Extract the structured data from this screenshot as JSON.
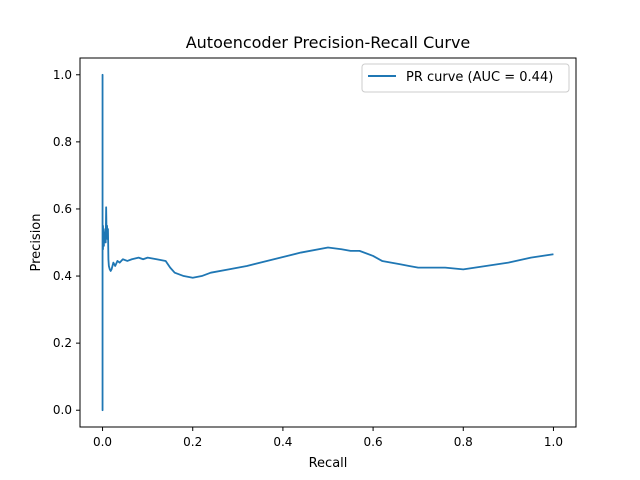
{
  "chart_data": {
    "type": "line",
    "title": "Autoencoder Precision-Recall Curve",
    "xlabel": "Recall",
    "ylabel": "Precision",
    "xlim": [
      -0.05,
      1.05
    ],
    "ylim": [
      -0.05,
      1.05
    ],
    "xticks": [
      "0.0",
      "0.2",
      "0.4",
      "0.6",
      "0.8",
      "1.0"
    ],
    "yticks": [
      "0.0",
      "0.2",
      "0.4",
      "0.6",
      "0.8",
      "1.0"
    ],
    "grid": false,
    "legend_position": "top-right",
    "colors": {
      "series": "#1f77b4",
      "axes": "#000000",
      "legend_border": "#cccccc"
    },
    "series": [
      {
        "name": "PR curve (AUC = 0.44)",
        "x": [
          0.0,
          0.0,
          0.0,
          0.0,
          0.0,
          0.001,
          0.001,
          0.002,
          0.002,
          0.003,
          0.003,
          0.004,
          0.005,
          0.006,
          0.007,
          0.008,
          0.009,
          0.01,
          0.011,
          0.012,
          0.013,
          0.014,
          0.016,
          0.018,
          0.02,
          0.024,
          0.028,
          0.033,
          0.038,
          0.045,
          0.055,
          0.065,
          0.08,
          0.09,
          0.1,
          0.12,
          0.14,
          0.15,
          0.16,
          0.18,
          0.2,
          0.22,
          0.24,
          0.28,
          0.32,
          0.38,
          0.44,
          0.5,
          0.53,
          0.55,
          0.57,
          0.6,
          0.62,
          0.64,
          0.66,
          0.68,
          0.7,
          0.72,
          0.76,
          0.8,
          0.85,
          0.9,
          0.95,
          1.0
        ],
        "y": [
          0.0,
          1.0,
          0.0,
          0.95,
          0.5,
          0.48,
          0.55,
          0.5,
          0.53,
          0.49,
          0.52,
          0.5,
          0.52,
          0.54,
          0.5,
          0.605,
          0.52,
          0.55,
          0.51,
          0.54,
          0.45,
          0.43,
          0.42,
          0.415,
          0.42,
          0.44,
          0.43,
          0.445,
          0.44,
          0.45,
          0.445,
          0.45,
          0.455,
          0.45,
          0.455,
          0.45,
          0.445,
          0.425,
          0.41,
          0.4,
          0.395,
          0.4,
          0.41,
          0.42,
          0.43,
          0.45,
          0.47,
          0.485,
          0.48,
          0.475,
          0.475,
          0.46,
          0.445,
          0.44,
          0.435,
          0.43,
          0.425,
          0.425,
          0.425,
          0.42,
          0.43,
          0.44,
          0.455,
          0.465
        ]
      }
    ]
  }
}
